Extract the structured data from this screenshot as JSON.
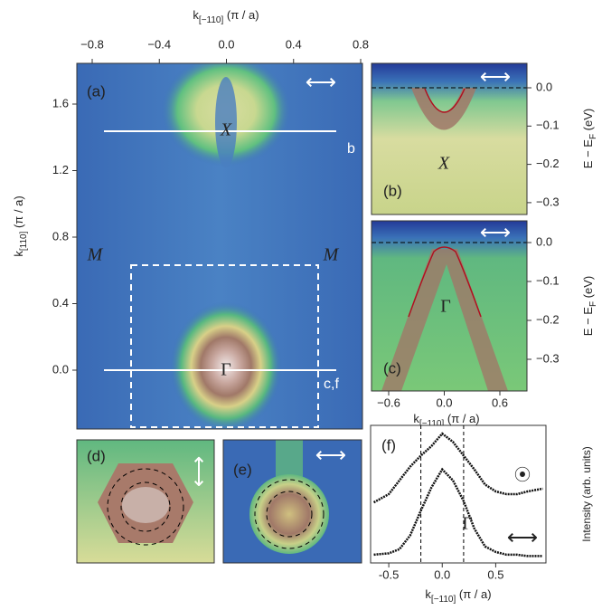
{
  "figure": {
    "top_axis": {
      "label": {
        "main": "k",
        "sub": "[−110]",
        "unit": " (π / a)"
      },
      "ticks": [
        "−0.8",
        "−0.4",
        "0.0",
        "0.4",
        "0.8"
      ]
    },
    "left_axis": {
      "label": {
        "main": "k",
        "sub": "[110]",
        "unit": " (π / a)"
      },
      "ticks": [
        "1.6",
        "1.2",
        "0.8",
        "0.4",
        "0.0"
      ]
    },
    "panel_a": {
      "tag": "(a)",
      "x_point": "X",
      "b_cut": "b",
      "m_left": "M",
      "m_right": "M",
      "gamma": "Γ",
      "cf_cut": "c,f"
    },
    "panel_b": {
      "tag": "(b)",
      "point": "X",
      "ticks": [
        "0.0",
        "−0.1",
        "−0.2",
        "−0.3"
      ],
      "axis_label": {
        "main": "E − E",
        "sub": "F",
        "unit": " (eV)"
      }
    },
    "panel_c": {
      "tag": "(c)",
      "point": "Γ",
      "ticks": [
        "0.0",
        "−0.1",
        "−0.2",
        "−0.3"
      ],
      "axis_label": {
        "main": "E − E",
        "sub": "F",
        "unit": " (eV)"
      },
      "x_ticks": [
        "−0.6",
        "0.0",
        "0.6"
      ],
      "x_label": {
        "main": "k",
        "sub": "[−110]",
        "unit": " (π / a)"
      }
    },
    "panel_d": {
      "tag": "(d)"
    },
    "panel_e": {
      "tag": "(e)"
    }
  },
  "chart_data": {
    "type": "line",
    "annotations": [
      "(f)",
      "Γ"
    ],
    "x_label": {
      "main": "k",
      "sub": "[−110]",
      "unit": " (π / a)"
    },
    "y_label": "Intensity (arb. units)",
    "xlim": [
      -0.67,
      0.97
    ],
    "ylim": [
      0,
      1
    ],
    "xticks": [
      {
        "value": -0.5,
        "label": "-0.5"
      },
      {
        "value": 0,
        "label": "0.0"
      },
      {
        "value": 0.5,
        "label": "0.5"
      }
    ],
    "vlines": [
      -0.2,
      0.2
    ],
    "x": [
      -0.64,
      -0.5,
      -0.4,
      -0.3,
      -0.2,
      -0.1,
      0,
      0.1,
      0.2,
      0.3,
      0.4,
      0.5,
      0.6,
      0.7,
      0.8,
      0.94
    ],
    "series": [
      {
        "color": "#111111",
        "values": [
          0.44,
          0.5,
          0.6,
          0.7,
          0.78,
          0.85,
          0.94,
          0.88,
          0.78,
          0.68,
          0.57,
          0.52,
          0.5,
          0.5,
          0.52,
          0.54
        ]
      },
      {
        "color": "#111111",
        "values": [
          0.06,
          0.07,
          0.1,
          0.2,
          0.38,
          0.55,
          0.68,
          0.6,
          0.45,
          0.25,
          0.12,
          0.08,
          0.06,
          0.06,
          0.05,
          0.05
        ]
      }
    ]
  }
}
